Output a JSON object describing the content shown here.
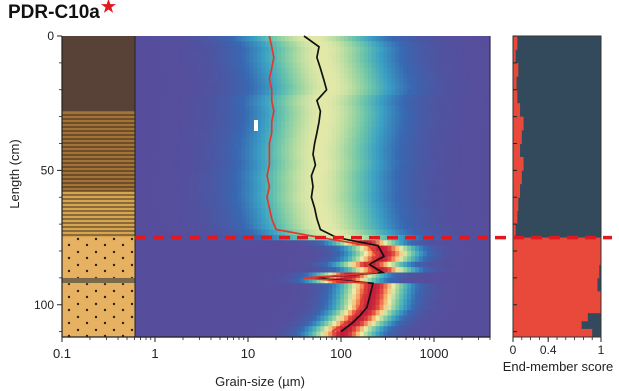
{
  "chart_data": {
    "type": "heatmap",
    "title": "PDR-C10a",
    "title_marker": "star",
    "xlabel": "Grain-size (µm)",
    "ylabel": "Length (cm)",
    "x_scale": "log",
    "x_ticks": [
      "0.1",
      "1",
      "10",
      "100",
      "1000"
    ],
    "y_ticks": [
      "0",
      "50",
      "100"
    ],
    "ylim": [
      0,
      112
    ],
    "xlim": [
      0.1,
      4000
    ],
    "boundary_depth": 75,
    "boundary_color": "#e0191f",
    "series": [
      {
        "name": "",
        "color": "#111111",
        "depth": [
          0,
          4,
          8,
          12,
          16,
          20,
          24,
          28,
          32,
          36,
          40,
          44,
          48,
          52,
          56,
          60,
          64,
          68,
          72,
          75,
          78,
          82,
          85,
          88,
          89,
          90,
          92,
          95,
          98,
          101,
          104,
          107,
          110
        ],
        "grain_size": [
          40,
          58,
          55,
          60,
          65,
          70,
          55,
          60,
          58,
          55,
          52,
          50,
          53,
          48,
          50,
          48,
          52,
          55,
          60,
          90,
          250,
          290,
          200,
          280,
          120,
          50,
          220,
          210,
          200,
          190,
          160,
          130,
          100
        ]
      },
      {
        "name": "",
        "color": "#e0392b",
        "depth": [
          0,
          4,
          8,
          12,
          16,
          20,
          24,
          28,
          32,
          36,
          40,
          44,
          48,
          52,
          56,
          60,
          64,
          68,
          72,
          75,
          78,
          82,
          85,
          88,
          89,
          90,
          92,
          95,
          98,
          101,
          104,
          107,
          110
        ],
        "grain_size": [
          17,
          18,
          19,
          18,
          17,
          18,
          18,
          19,
          18,
          18,
          17,
          17,
          17,
          16,
          17,
          16,
          17,
          18,
          20,
          60,
          200,
          250,
          190,
          240,
          110,
          40,
          190,
          180,
          170,
          160,
          140,
          110,
          80
        ]
      }
    ],
    "lithology": [
      {
        "top": 0,
        "bottom": 28,
        "color": "#584238",
        "pattern": "none"
      },
      {
        "top": 28,
        "bottom": 58,
        "color": "#a37438",
        "pattern": "lines"
      },
      {
        "top": 58,
        "bottom": 75,
        "color": "#d5a552",
        "pattern": "lines"
      },
      {
        "top": 75,
        "bottom": 90,
        "color": "#e6b262",
        "pattern": "dots"
      },
      {
        "top": 90,
        "bottom": 92,
        "color": "#7a6a4a",
        "pattern": "none"
      },
      {
        "top": 92,
        "bottom": 112,
        "color": "#e6b262",
        "pattern": "dots"
      }
    ],
    "end_member": {
      "xlabel": "End-member score",
      "x_ticks": [
        "0",
        "0.4",
        "1"
      ],
      "xlim": [
        0,
        1
      ],
      "colors": [
        "#e8493a",
        "#324a5c"
      ],
      "depth": [
        0,
        5,
        10,
        15,
        20,
        25,
        30,
        35,
        40,
        45,
        50,
        55,
        60,
        65,
        70,
        74,
        75,
        80,
        85,
        90,
        95,
        100,
        103,
        106,
        109
      ],
      "red_score": [
        0.05,
        0.03,
        0.06,
        0.04,
        0.05,
        0.08,
        0.12,
        0.1,
        0.08,
        0.12,
        0.1,
        0.08,
        0.06,
        0.05,
        0.03,
        0.02,
        1.0,
        1.0,
        0.98,
        0.96,
        1.0,
        1.0,
        0.85,
        0.78,
        0.9
      ]
    }
  }
}
